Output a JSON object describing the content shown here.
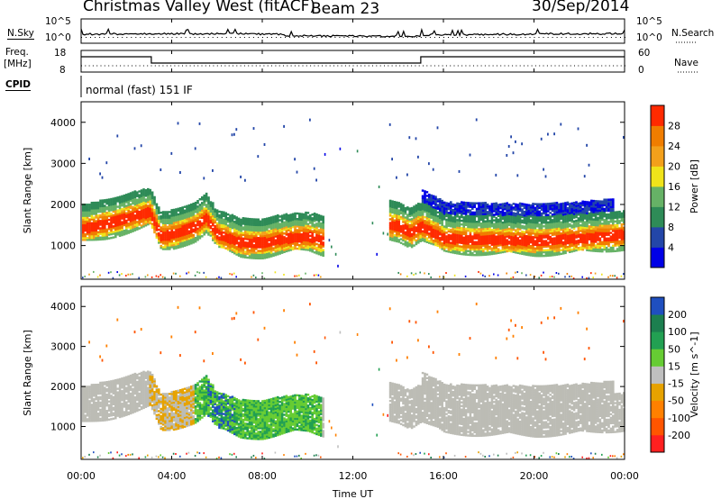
{
  "header": {
    "station": "Christmas Valley West (fitACF)",
    "beam": "Beam 23",
    "date": "30/Sep/2014"
  },
  "noise_panel": {
    "left_label": "N.Sky",
    "right_label": "N.Search",
    "tick_top": "10^5",
    "tick_bottom": "10^0",
    "tick_top_right": "10^5",
    "tick_bottom_right": "10^0"
  },
  "freq_panel": {
    "left_label_1": "Freq.",
    "left_label_2": "[MHz]",
    "right_label": "Nave",
    "left_ticks": [
      "18",
      "8"
    ],
    "right_ticks": [
      "60",
      "0"
    ]
  },
  "cpid": {
    "label": "CPID",
    "program": "normal (fast) 151 IF"
  },
  "colors": {
    "power_scale": [
      "#0000e6",
      "#2346a8",
      "#2e8b57",
      "#66b266",
      "#f0e31a",
      "#f3a01b",
      "#f07d00",
      "#ff2a00"
    ],
    "velocity_scale": [
      "#1f4fbf",
      "#1c7f4f",
      "#22a052",
      "#66cc33",
      "#bfbfbf",
      "#e6a200",
      "#ff8000",
      "#ff5500",
      "#ff2020"
    ],
    "ground_scatter": "#bcbcb5"
  },
  "chart_data": [
    {
      "type": "heatmap",
      "name": "power",
      "ylabel": "Slant Range [km]",
      "y_ticks": [
        "1000",
        "2000",
        "3000",
        "4000"
      ],
      "ylim": [
        180,
        4500
      ],
      "colorbar_label": "Power [dB]",
      "colorbar_ticks": [
        "4",
        "8",
        "12",
        "16",
        "20",
        "24",
        "28"
      ],
      "colorbar_range": [
        0,
        30
      ],
      "x_hours": [
        0,
        1,
        2,
        3,
        3.5,
        4,
        5,
        5.5,
        6,
        6.5,
        7,
        8,
        9,
        10,
        10.7,
        13.5,
        14,
        14.5,
        15,
        16,
        18,
        20,
        22,
        24
      ],
      "layer_center_km": [
        1380,
        1500,
        1650,
        1800,
        1200,
        1250,
        1450,
        1650,
        1250,
        1150,
        1050,
        1050,
        1150,
        1200,
        1100,
        1500,
        1450,
        1300,
        1450,
        1150,
        1120,
        1100,
        1150,
        1250
      ]
    },
    {
      "type": "heatmap",
      "name": "velocity",
      "ylabel": "Slant Range [km]",
      "y_ticks": [
        "1000",
        "2000",
        "3000",
        "4000"
      ],
      "ylim": [
        180,
        4500
      ],
      "colorbar_label": "Velocity [m s^-1]",
      "colorbar_ticks": [
        "200",
        "100",
        "50",
        "15",
        "-15",
        "-50",
        "-100",
        "-200"
      ]
    }
  ],
  "xaxis": {
    "label": "Time UT",
    "ticks": [
      "00:00",
      "04:00",
      "08:00",
      "12:00",
      "16:00",
      "20:00",
      "00:00"
    ]
  }
}
